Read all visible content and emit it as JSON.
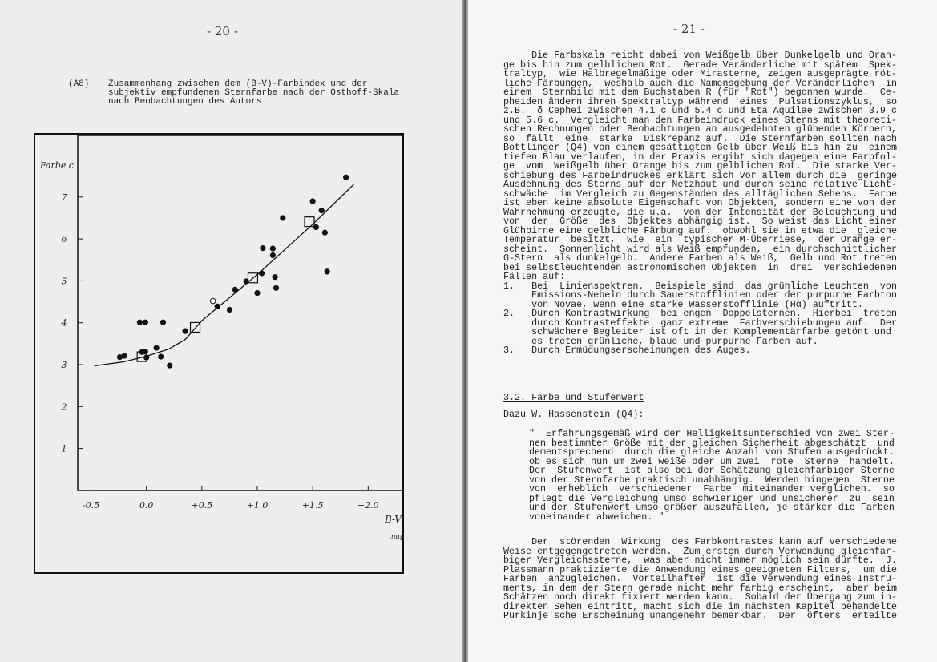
{
  "left_page": {
    "page_number": "- 20 -",
    "figure_label": "(A8)",
    "caption_lines": [
      "Zusammenhang zwischen dem (B-V)-Farbindex und der",
      "subjektiv empfundenen Sternfarbe nach der Osthoff-Skala",
      "nach Beobachtungen des Autors"
    ]
  },
  "chart_data": {
    "type": "scatter",
    "ylabel": "Farbe c",
    "xlabel": "B-V",
    "xunit": "mag",
    "xlim": [
      -0.6,
      2.3
    ],
    "ylim": [
      0,
      7.9
    ],
    "x_ticks": [
      "-0.5",
      "0.0",
      "+0.5",
      "+1.0",
      "+1.5",
      "+2.0"
    ],
    "x_tick_values": [
      -0.5,
      0.0,
      0.5,
      1.0,
      1.5,
      2.0
    ],
    "y_ticks": [
      "1",
      "2",
      "3",
      "4",
      "5",
      "6",
      "7"
    ],
    "y_tick_values": [
      1,
      2,
      3,
      4,
      5,
      6,
      7
    ],
    "grid": false,
    "series": [
      {
        "marker": "filled-circle",
        "points": [
          [
            1.8,
            7.47
          ],
          [
            1.5,
            6.9
          ],
          [
            1.58,
            6.68
          ],
          [
            1.23,
            6.5
          ],
          [
            1.53,
            6.28
          ],
          [
            1.61,
            6.15
          ],
          [
            1.05,
            5.78
          ],
          [
            1.14,
            5.77
          ],
          [
            1.14,
            5.61
          ],
          [
            1.04,
            5.18
          ],
          [
            1.16,
            5.09
          ],
          [
            1.63,
            5.22
          ],
          [
            0.9,
            4.99
          ],
          [
            1.0,
            4.71
          ],
          [
            1.17,
            4.83
          ],
          [
            0.8,
            4.79
          ],
          [
            0.64,
            4.39
          ],
          [
            0.75,
            4.31
          ],
          [
            0.35,
            3.8
          ],
          [
            -0.06,
            4.01
          ],
          [
            -0.01,
            4.01
          ],
          [
            0.15,
            4.01
          ],
          [
            0.09,
            3.4
          ],
          [
            0.13,
            3.19
          ],
          [
            0.21,
            2.98
          ],
          [
            -0.04,
            3.3
          ],
          [
            -0.01,
            3.31
          ],
          [
            0.0,
            3.17
          ],
          [
            -0.24,
            3.18
          ],
          [
            -0.2,
            3.21
          ]
        ]
      },
      {
        "marker": "open-circle",
        "points": [
          [
            0.6,
            4.52
          ]
        ]
      },
      {
        "marker": "open-square",
        "points": [
          [
            -0.04,
            3.19
          ],
          [
            0.44,
            3.89
          ],
          [
            0.96,
            5.07
          ],
          [
            1.47,
            6.41
          ]
        ]
      },
      {
        "marker": "line",
        "points": [
          [
            -0.47,
            2.97
          ],
          [
            -0.2,
            3.07
          ],
          [
            0.0,
            3.2
          ],
          [
            0.2,
            3.37
          ],
          [
            0.35,
            3.6
          ],
          [
            0.5,
            4.05
          ],
          [
            0.75,
            4.6
          ],
          [
            1.0,
            5.15
          ],
          [
            1.25,
            5.75
          ],
          [
            1.5,
            6.35
          ],
          [
            1.87,
            7.3
          ]
        ]
      }
    ]
  },
  "right_page": {
    "page_number": "- 21 -",
    "block1": [
      "     Die Farbskala reicht dabei von Weißgelb über Dunkelgelb und Oran-",
      "ge bis hin zum gelblichen Rot.  Gerade Veränderliche mit spätem  Spek-",
      "traltyp,  wie Halbregelmäßige oder Mirasterne, zeigen ausgeprägte röt-",
      "liche Färbungen,  weshalb auch die Namensgebung der Veränderlichen  in",
      "einem  Sternbild mit dem Buchstaben R (für \"Rot\") begonnen wurde.  Ce-",
      "pheiden ändern ihren Spektraltyp während  eines  Pulsationszyklus,  so",
      "z.B.  δ Cephei zwischen 4.1 c und 5.4 c und Eta Aquilae zwischen 3.9 c",
      "und 5.6 c.  Vergleicht man den Farbeindruck eines Sterns mit theoreti-",
      "schen Rechnungen oder Beobachtungen an ausgedehnten glühenden Körpern,",
      "so  fällt  eine  starke  Diskrepanz auf.  Die Sternfarben sollten nach",
      "Bottlinger (Q4) von einem gesättigten Gelb über Weiß bis hin zu  einem",
      "tiefen Blau verlaufen, in der Praxis ergibt sich dagegen eine Farbfol-",
      "ge  vom  Weißgelb über Orange bis zum gelblichen Rot.  Die starke Ver-",
      "schiebung des Farbeindruckes erklärt sich vor allem durch die  geringe",
      "Ausdehnung des Sterns auf der Netzhaut und durch seine relative Licht-",
      "schwäche  im Vergleich zu Gegenständen des alltäglichen Sehens.  Farbe",
      "ist eben keine absolute Eigenschaft von Objekten, sondern eine von der",
      "Wahrnehmung erzeugte, die u.a.  von der Intensität der Beleuchtung und",
      "von  der  Größe  des  Objektes abhängig ist.  So weist das Licht einer",
      "Glühbirne eine gelbliche Färbung auf.  obwohl sie in etwa die  gleiche",
      "Temperatur  besitzt,  wie  ein  typischer M-Überriese,  der Orange er-",
      "scheint.  Sonnenlicht wird als Weiß empfunden,  ein durchschnittlicher",
      "G-Stern  als dunkelgelb.  Andere Farben als Weiß,  Gelb und Rot treten",
      "bei selbstleuchtenden astronomischen Objekten  in  drei  verschiedenen",
      "Fällen auf:",
      "1.   Bei  Linienspektren.  Beispiele sind  das grünliche Leuchten  von",
      "     Emissions-Nebeln durch Sauerstofflinien oder der purpurne Farbton",
      "     von Novae, wenn eine starke Wasserstofflinie (Hα) auftritt.",
      "2.   Durch Kontrastwirkung  bei engen  Doppelsternen.  Hierbei  treten",
      "     durch Kontrasteffekte  ganz extreme  Farbverschiebungen auf.  Der",
      "     schwächere Begleiter ist oft in der Komplementärfarbe getönt und",
      "     es treten grünliche, blaue und purpurne Farben auf.",
      "3.   Durch Ermüdungserscheinungen des Auges."
    ],
    "section_heading": "3.2. Farbe und Stufenwert",
    "intro": "Dazu W. Hassenstein (Q4):",
    "quote": [
      "\"  Erfahrungsgemäß wird der Helligkeitsunterschied von zwei Ster-",
      "nen bestimmter Größe mit der gleichen Sicherheit abgeschätzt  und",
      "dementsprechend  durch die gleiche Anzahl von Stufen ausgedrückt.",
      "ob es sich nun um zwei weiße oder um zwei  rote  Sterne  handelt.",
      "Der  Stufenwert  ist also bei der Schätzung gleichfarbiger Sterne",
      "von der Sternfarbe praktisch unabhängig.  Werden hingegen  Sterne",
      "von  erheblich  verschiedener  Farbe  miteinander verglichen.  so",
      "pflegt die Vergleichung umso schwieriger und unsicherer  zu  sein",
      "und der Stufenwert umso größer auszufallen, je stärker die Farben",
      "voneinander abweichen. \""
    ],
    "block2": [
      "     Der  störenden  Wirkung  des Farbkontrastes kann auf verschiedene",
      "Weise entgegengetreten werden.  Zum ersten durch Verwendung gleichfar-",
      "biger Vergleichssterne,  was aber nicht immer möglich sein dürfte.  J.",
      "Plassmann praktizierte die Anwendung eines geeigneten Filters,  um die",
      "Farben  anzugleichen.  Vorteilhafter  ist die Verwendung eines Instru-",
      "ments, in dem der Stern gerade nicht mehr farbig erscheint,  aber beim",
      "Schätzen noch direkt fixiert werden kann.  Sobald der Übergang zum in-",
      "direkten Sehen eintritt, macht sich die im nächsten Kapitel behandelte",
      "Purkinje'sche Erscheinung unangenehm bemerkbar.  Der  öfters  erteilte"
    ]
  }
}
